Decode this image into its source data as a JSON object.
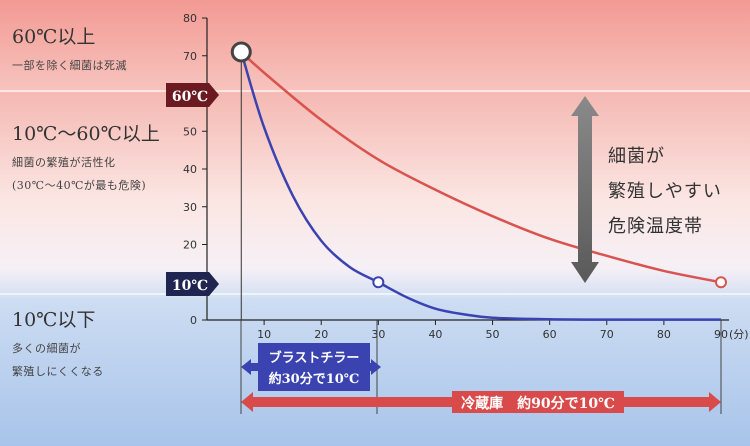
{
  "zones": {
    "high": {
      "title": "60℃以上",
      "note": "一部を除く細菌は死滅"
    },
    "mid": {
      "title": "10℃〜60℃以上",
      "note1": "細菌の繁殖が活性化",
      "note2": "(30℃〜40℃が最も危険)"
    },
    "low": {
      "title": "10℃以下",
      "note1": "多くの細菌が",
      "note2": "繁殖しにくくなる"
    }
  },
  "danger_text": [
    "細菌が",
    "繁殖しやすい",
    "危険温度帯"
  ],
  "badges": {
    "hot": "60℃",
    "cold": "10℃"
  },
  "arrows": {
    "blast": {
      "line1": "ブラストチラー",
      "line2": "約30分で10℃"
    },
    "fridge": {
      "label": "冷蔵庫　約90分で10℃"
    }
  },
  "colors": {
    "red_series": "#d9534f",
    "blue_series": "#3a43b0",
    "badge": "#6b1a22",
    "badge_blue": "#1f2550",
    "arrow_gray": "#6e6e6e"
  },
  "chart_data": {
    "type": "line",
    "x_unit_label": "(分)",
    "xlim": [
      0,
      90
    ],
    "ylim": [
      0,
      80
    ],
    "xticks": [
      10,
      20,
      30,
      40,
      50,
      60,
      70,
      80,
      90
    ],
    "yticks": [
      0,
      10,
      20,
      30,
      40,
      50,
      60,
      70,
      80
    ],
    "series": [
      {
        "color": "#3a43b0",
        "x": [
          6,
          10,
          15,
          20,
          25,
          30,
          35,
          40,
          45,
          50,
          60,
          70,
          80,
          90
        ],
        "y": [
          71,
          51,
          33,
          21,
          14,
          10,
          6,
          3,
          1.5,
          0.6,
          0.2,
          0.1,
          0.1,
          0.1
        ]
      },
      {
        "color": "#d9534f",
        "x": [
          6,
          10,
          20,
          30,
          40,
          50,
          60,
          70,
          80,
          90
        ],
        "y": [
          71,
          65.5,
          53,
          42.5,
          34.5,
          27.5,
          21.5,
          17,
          13,
          10
        ]
      }
    ],
    "markers": [
      {
        "x": 6,
        "y": 71
      },
      {
        "x": 30,
        "y": 10
      },
      {
        "x": 90,
        "y": 10
      }
    ]
  }
}
